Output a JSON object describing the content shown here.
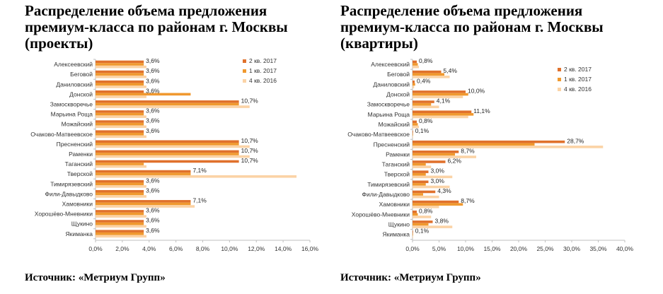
{
  "source_left": "Источник: «Метриум Групп»",
  "source_right": "Источник: «Метриум Групп»",
  "colors": {
    "q2_2017": "#e0712c",
    "q1_2017": "#f0992f",
    "q4_2016": "#fbd3a6"
  },
  "chart_data": [
    {
      "type": "bar",
      "orientation": "horizontal",
      "title": "Распределение объема предложения премиум-класса по районам г. Москвы (проекты)",
      "categories": [
        "Алексеевский",
        "Беговой",
        "Даниловский",
        "Донской",
        "Замоскворечье",
        "Марьина Роща",
        "Можайский",
        "Очаково-Матвеевское",
        "Пресненский",
        "Раменки",
        "Таганский",
        "Тверской",
        "Тимирязевский",
        "Фили-Давыдково",
        "Хамовники",
        "Хорошёво-Мневники",
        "Щукино",
        "Якиманка"
      ],
      "series": [
        {
          "name": "2 кв. 2017",
          "values": [
            3.6,
            3.6,
            3.6,
            3.6,
            10.7,
            3.6,
            3.6,
            3.6,
            10.7,
            10.7,
            10.7,
            7.1,
            3.6,
            3.6,
            7.1,
            3.6,
            3.6,
            3.6
          ]
        },
        {
          "name": "1 кв. 2017",
          "values": [
            3.6,
            3.6,
            3.6,
            7.1,
            10.7,
            3.6,
            3.6,
            3.6,
            10.7,
            10.7,
            3.6,
            7.1,
            3.6,
            3.6,
            7.1,
            3.6,
            3.6,
            3.6
          ]
        },
        {
          "name": "4 кв. 2016",
          "values": [
            3.8,
            3.8,
            3.8,
            3.8,
            11.5,
            3.8,
            3.8,
            3.8,
            11.5,
            11.5,
            3.8,
            15.0,
            3.8,
            3.8,
            7.4,
            3.8,
            3.8,
            3.8
          ]
        }
      ],
      "data_labels": [
        "3,6%",
        "3,6%",
        "3,6%",
        "3,6%",
        "10,7%",
        "3,6%",
        "3,6%",
        "3,6%",
        "10,7%",
        "10,7%",
        "10,7%",
        "7,1%",
        "3,6%",
        "3,6%",
        "7,1%",
        "3,6%",
        "3,6%",
        "3,6%"
      ],
      "xticks": [
        "0,0%",
        "2,0%",
        "4,0%",
        "6,0%",
        "8,0%",
        "10,0%",
        "12,0%",
        "14,0%",
        "16,0%"
      ],
      "xlim": [
        0,
        16
      ],
      "legend": "top-right"
    },
    {
      "type": "bar",
      "orientation": "horizontal",
      "title": "Распределение объема предложения премиум-класса по районам г. Москвы (квартиры)",
      "categories": [
        "Алексеевский",
        "Беговой",
        "Даниловский",
        "Донской",
        "Замоскворечье",
        "Марьина Роща",
        "Можайский",
        "Очаково-Матвеевское",
        "Пресненский",
        "Раменки",
        "Таганский",
        "Тверской",
        "Тимирязевский",
        "Фили-Давыдково",
        "Хамовники",
        "Хорошёво-Мневники",
        "Щукино",
        "Якиманка"
      ],
      "series": [
        {
          "name": "2 кв. 2017",
          "values": [
            0.8,
            5.4,
            0.4,
            10.0,
            4.1,
            11.1,
            0.8,
            0.1,
            28.7,
            8.7,
            6.2,
            3.0,
            3.0,
            4.3,
            8.7,
            0.8,
            3.8,
            0.1
          ]
        },
        {
          "name": "1 кв. 2017",
          "values": [
            1.0,
            6.0,
            0.5,
            10.5,
            3.5,
            11.5,
            1.0,
            0.1,
            23.0,
            8.0,
            2.5,
            2.5,
            2.5,
            2.0,
            9.5,
            1.0,
            3.0,
            0.1
          ]
        },
        {
          "name": "4 кв. 2016",
          "values": [
            1.2,
            7.0,
            0.3,
            9.5,
            5.0,
            10.5,
            1.2,
            0.1,
            35.9,
            12.0,
            3.5,
            7.5,
            7.0,
            5.0,
            5.0,
            3.5,
            7.5,
            0.1
          ]
        }
      ],
      "data_labels": [
        "0,8%",
        "5,4%",
        "0,4%",
        "10,0%",
        "4,1%",
        "11,1%",
        "0,8%",
        "0,1%",
        "28,7%",
        "8,7%",
        "6,2%",
        "3,0%",
        "3,0%",
        "4,3%",
        "8,7%",
        "0,8%",
        "3,8%",
        "0,1%"
      ],
      "xticks": [
        "0,0%",
        "5,0%",
        "10,0%",
        "15,0%",
        "20,0%",
        "25,0%",
        "30,0%",
        "35,0%",
        "40,0%"
      ],
      "xlim": [
        0,
        40
      ],
      "legend": "top-right"
    }
  ]
}
